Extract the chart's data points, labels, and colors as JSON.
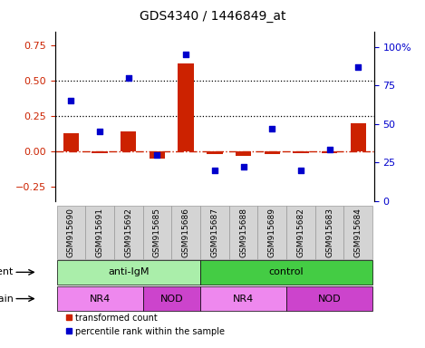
{
  "title": "GDS4340 / 1446849_at",
  "samples": [
    "GSM915690",
    "GSM915691",
    "GSM915692",
    "GSM915685",
    "GSM915686",
    "GSM915687",
    "GSM915688",
    "GSM915689",
    "GSM915682",
    "GSM915683",
    "GSM915684"
  ],
  "transformed_count": [
    0.13,
    -0.01,
    0.14,
    -0.05,
    0.62,
    -0.02,
    -0.03,
    -0.02,
    -0.01,
    -0.01,
    0.2
  ],
  "percentile_rank": [
    65,
    45,
    80,
    30,
    95,
    20,
    22,
    47,
    20,
    33,
    87
  ],
  "ylim_left": [
    -0.35,
    0.85
  ],
  "ylim_right": [
    0,
    110
  ],
  "yticks_left": [
    -0.25,
    0.0,
    0.25,
    0.5,
    0.75
  ],
  "yticks_right": [
    0,
    25,
    50,
    75,
    100
  ],
  "ytick_labels_right": [
    "0",
    "25",
    "50",
    "75",
    "100%"
  ],
  "hlines_dotted": [
    0.25,
    0.5
  ],
  "hline_dashdot": 0.0,
  "bar_color": "#cc2200",
  "scatter_color": "#0000cc",
  "zero_line_color": "#cc2200",
  "agent_groups": [
    {
      "label": "anti-IgM",
      "start": 0,
      "end": 5,
      "color": "#aaeea a"
    },
    {
      "label": "control",
      "start": 5,
      "end": 11,
      "color": "#44cc44"
    }
  ],
  "strain_groups": [
    {
      "label": "NR4",
      "start": 0,
      "end": 3,
      "color": "#ee88ee"
    },
    {
      "label": "NOD",
      "start": 3,
      "end": 5,
      "color": "#cc44cc"
    },
    {
      "label": "NR4",
      "start": 5,
      "end": 8,
      "color": "#ee88ee"
    },
    {
      "label": "NOD",
      "start": 8,
      "end": 11,
      "color": "#cc44cc"
    }
  ],
  "agent_light_color": "#aaeeaa",
  "agent_dark_color": "#44cc44",
  "legend_items": [
    {
      "label": "transformed count",
      "color": "#cc2200"
    },
    {
      "label": "percentile rank within the sample",
      "color": "#0000cc"
    }
  ],
  "left_label_color": "#cc2200",
  "right_label_color": "#0000cc",
  "sample_box_color": "#d4d4d4",
  "sample_box_edge": "#999999"
}
